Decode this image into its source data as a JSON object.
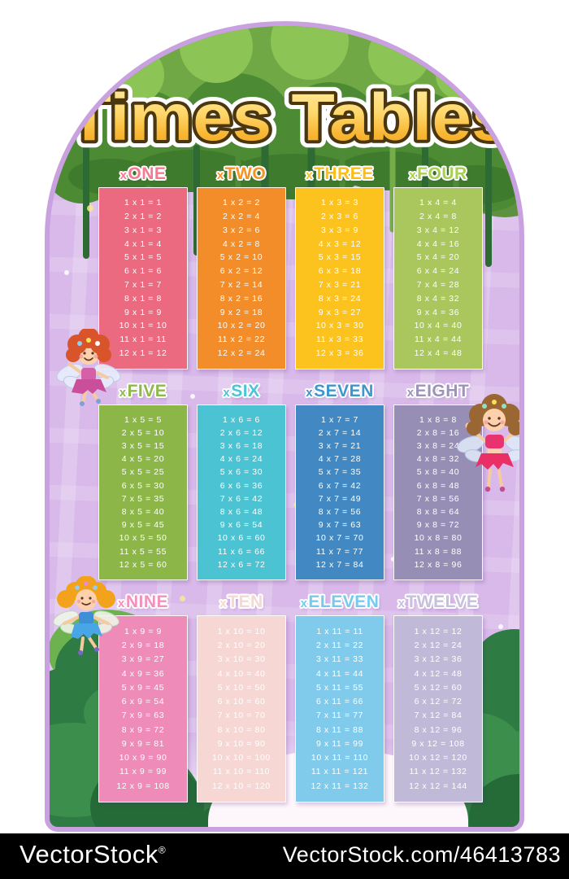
{
  "title": "Times Tables",
  "watermark": {
    "brand": "VectorStock",
    "brand_mark": "®",
    "url_text": "VectorStock.com/46413783"
  },
  "decorations": {
    "fairies": [
      "fairy-red-hair",
      "fairy-brown-hair",
      "fairy-blonde-pigtails"
    ],
    "scenery": [
      "tree-canopy-top",
      "hanging-vines",
      "pine-trees-bottom"
    ]
  },
  "colors": {
    "arch_fill": "#d8b9ea",
    "arch_edge": "#c9a1e0",
    "title_fill_top": "#ffeaa6",
    "title_fill_bottom": "#f29e1b",
    "title_outline": "#4a370f",
    "watermark_bar": "#000000"
  },
  "tables": [
    {
      "id": "one",
      "label_prefix": "x",
      "label": "ONE",
      "header_color": "#f5798f",
      "bg_color": "#ec6a80",
      "rows": [
        "1 x 1 = 1",
        "2 x 1 = 2",
        "3 x 1 = 3",
        "4 x 1 = 4",
        "5 x 1 = 5",
        "6 x 1 = 6",
        "7 x 1 = 7",
        "8 x 1 = 8",
        "9 x 1 = 9",
        "10 x 1 = 10",
        "11 x 1 = 11",
        "12 x 1 = 12"
      ]
    },
    {
      "id": "two",
      "label_prefix": "x",
      "label": "TWO",
      "header_color": "#f69326",
      "bg_color": "#f28d2a",
      "rows": [
        "1 x 2 = 2",
        "2 x 2 = 4",
        "3 x 2 = 6",
        "4 x 2 = 8",
        "5 x 2 = 10",
        "6 x 2 = 12",
        "7 x 2 = 14",
        "8 x 2 = 16",
        "9 x 2 = 18",
        "10 x 2 = 20",
        "11 x 2 = 22",
        "12 x 2 = 24"
      ]
    },
    {
      "id": "three",
      "label_prefix": "x",
      "label": "THREE",
      "header_color": "#fbbd17",
      "bg_color": "#fcc21d",
      "rows": [
        "1 x 3 = 3",
        "2 x 3 = 6",
        "3 x 3 = 9",
        "4 x 3 = 12",
        "5 x 3 = 15",
        "6 x 3 = 18",
        "7 x 3 = 21",
        "8 x 3 = 24",
        "9 x 3 = 27",
        "10 x 3 = 30",
        "11 x 3 = 33",
        "12 x 3 = 36"
      ]
    },
    {
      "id": "four",
      "label_prefix": "x",
      "label": "FOUR",
      "header_color": "#a8cf52",
      "bg_color": "#a9c75c",
      "rows": [
        "1 x 4 = 4",
        "2 x 4 = 8",
        "3 x 4 = 12",
        "4 x 4 = 16",
        "5 x 4 = 20",
        "6 x 4 = 24",
        "7 x 4 = 28",
        "8 x 4 = 32",
        "9 x 4 = 36",
        "10 x 4 = 40",
        "11 x 4 = 44",
        "12 x 4 = 48"
      ]
    },
    {
      "id": "five",
      "label_prefix": "x",
      "label": "FIVE",
      "header_color": "#8db84a",
      "bg_color": "#8db648",
      "rows": [
        "1 x 5 = 5",
        "2 x 5 = 10",
        "3 x 5 = 15",
        "4 x 5 = 20",
        "5 x 5 = 25",
        "6 x 5 = 30",
        "7 x 5 = 35",
        "8 x 5 = 40",
        "9 x 5 = 45",
        "10 x 5 = 50",
        "11 x 5 = 55",
        "12 x 5 = 60"
      ]
    },
    {
      "id": "six",
      "label_prefix": "x",
      "label": "SIX",
      "header_color": "#4cc5d9",
      "bg_color": "#4bc3d2",
      "rows": [
        "1 x 6 = 6",
        "2 x 6 = 12",
        "3 x 6 = 18",
        "4 x 6 = 24",
        "5 x 6 = 30",
        "6 x 6 = 36",
        "7 x 6 = 42",
        "8 x 6 = 48",
        "9 x 6 = 54",
        "10 x 6 = 60",
        "11 x 6 = 66",
        "12 x 6 = 72"
      ]
    },
    {
      "id": "seven",
      "label_prefix": "x",
      "label": "SEVEN",
      "header_color": "#3e96cf",
      "bg_color": "#4289c4",
      "rows": [
        "1 x 7 = 7",
        "2 x 7 = 14",
        "3 x 7 = 21",
        "4 x 7 = 28",
        "5 x 7 = 35",
        "6 x 7 = 42",
        "7 x 7 = 49",
        "8 x 7 = 56",
        "9 x 7 = 63",
        "10 x 7 = 70",
        "11 x 7 = 77",
        "12 x 7 = 84"
      ]
    },
    {
      "id": "eight",
      "label_prefix": "x",
      "label": "EIGHT",
      "header_color": "#9c94b8",
      "bg_color": "#968eb5",
      "rows": [
        "1 x 8 = 8",
        "2 x 8 = 16",
        "3 x 8 = 24",
        "4 x 8 = 32",
        "5 x 8 = 40",
        "6 x 8 = 48",
        "7 x 8 = 56",
        "8 x 8 = 64",
        "9 x 8 = 72",
        "10 x 8 = 80",
        "11 x 8 = 88",
        "12 x 8 = 96"
      ]
    },
    {
      "id": "nine",
      "label_prefix": "x",
      "label": "NINE",
      "header_color": "#f391bd",
      "bg_color": "#ee8bb8",
      "rows": [
        "1 x 9 = 9",
        "2 x 9 = 18",
        "3 x 9 = 27",
        "4 x 9 = 36",
        "5 x 9 = 45",
        "6 x 9 = 54",
        "7 x 9 = 63",
        "8 x 9 = 72",
        "9 x 9 = 81",
        "10 x 9 = 90",
        "11 x 9 = 99",
        "12 x 9 = 108"
      ]
    },
    {
      "id": "ten",
      "label_prefix": "x",
      "label": "TEN",
      "header_color": "#f7d8d0",
      "bg_color": "#f6d7d4",
      "rows": [
        "1 x 10 = 10",
        "2 x 10 = 20",
        "3 x 10 = 30",
        "4 x 10 = 40",
        "5 x 10 = 50",
        "6 x 10 = 60",
        "7 x 10 = 70",
        "8 x 10 = 80",
        "9 x 10 = 90",
        "10 x 10 = 100",
        "11 x 10 = 110",
        "12 x 10 = 120"
      ]
    },
    {
      "id": "eleven",
      "label_prefix": "x",
      "label": "ELEVEN",
      "header_color": "#74cbee",
      "bg_color": "#80cbec",
      "rows": [
        "1 x 11 = 11",
        "2 x 11 = 22",
        "3 x 11 = 33",
        "4 x 11 = 44",
        "5 x 11 = 55",
        "6 x 11 = 66",
        "7 x 11 = 77",
        "8 x 11 = 88",
        "9 x 11 = 99",
        "10 x 11 = 110",
        "11 x 11 = 121",
        "12 x 11 = 132"
      ]
    },
    {
      "id": "twelve",
      "label_prefix": "x",
      "label": "TWELVE",
      "header_color": "#c6c0dc",
      "bg_color": "#c0bad8",
      "rows": [
        "1 x 12 = 12",
        "2 x 12 = 24",
        "3 x 12 = 36",
        "4 x 12 = 48",
        "5 x 12 = 60",
        "6 x 12 = 72",
        "7 x 12 = 84",
        "8 x 12 = 96",
        "9 x 12 = 108",
        "10 x 12 = 120",
        "11 x 12 = 132",
        "12 x 12 = 144"
      ]
    }
  ]
}
